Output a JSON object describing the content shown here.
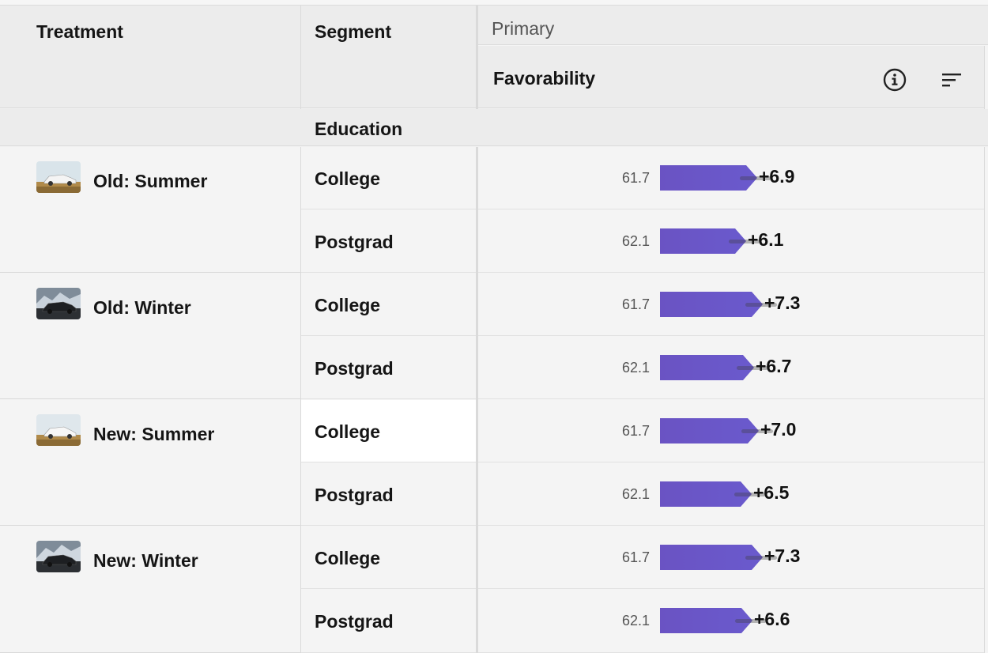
{
  "header": {
    "treatment": "Treatment",
    "segment": "Segment",
    "primary": "Primary",
    "metric": "Favorability"
  },
  "group": {
    "label": "Education"
  },
  "rows": [
    {
      "treatment": "Old: Summer",
      "thumb": "summer-white-car",
      "segments": [
        {
          "label": "College",
          "base": "61.7",
          "delta_text": "+6.9",
          "delta": 6.9
        },
        {
          "label": "Postgrad",
          "base": "62.1",
          "delta_text": "+6.1",
          "delta": 6.1
        }
      ]
    },
    {
      "treatment": "Old: Winter",
      "thumb": "winter-dark-car",
      "segments": [
        {
          "label": "College",
          "base": "61.7",
          "delta_text": "+7.3",
          "delta": 7.3
        },
        {
          "label": "Postgrad",
          "base": "62.1",
          "delta_text": "+6.7",
          "delta": 6.7
        }
      ]
    },
    {
      "treatment": "New: Summer",
      "thumb": "summer-white-car",
      "segments": [
        {
          "label": "College",
          "base": "61.7",
          "delta_text": "+7.0",
          "delta": 7.0
        },
        {
          "label": "Postgrad",
          "base": "62.1",
          "delta_text": "+6.5",
          "delta": 6.5
        }
      ]
    },
    {
      "treatment": "New: Winter",
      "thumb": "winter-dark-car",
      "segments": [
        {
          "label": "College",
          "base": "61.7",
          "delta_text": "+7.3",
          "delta": 7.3
        },
        {
          "label": "Postgrad",
          "base": "62.1",
          "delta_text": "+6.6",
          "delta": 6.6
        }
      ]
    }
  ],
  "icons": {
    "info": "info-circle-icon",
    "sort": "sort-icon"
  },
  "colors": {
    "bar": "#6a53c3",
    "header_bg": "#ececec",
    "cell_bg": "#f4f4f4",
    "selected_bg": "#ffffff"
  }
}
